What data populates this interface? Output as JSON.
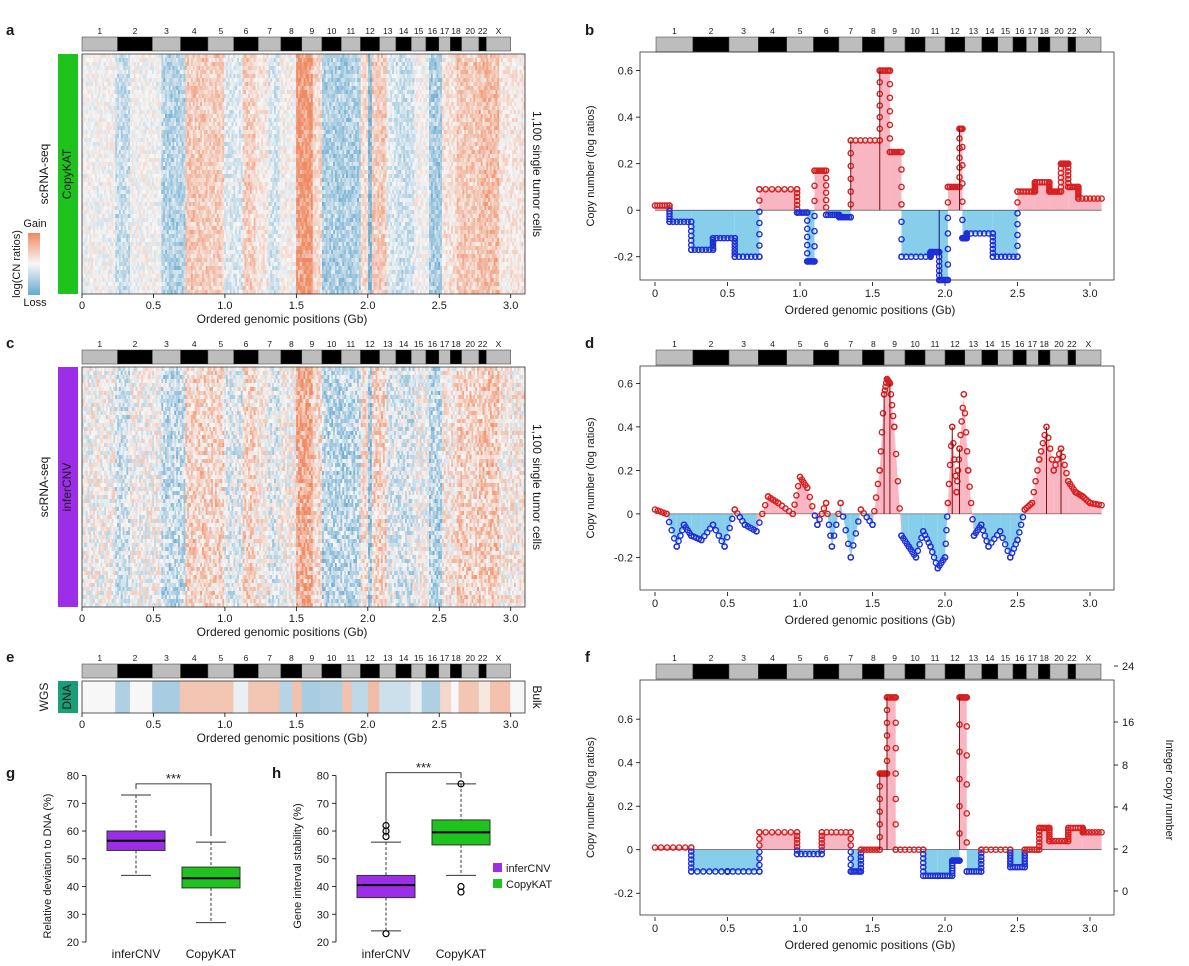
{
  "figure": {
    "chromosome_labels": [
      "1",
      "2",
      "3",
      "4",
      "5",
      "6",
      "7",
      "8",
      "9",
      "10",
      "11",
      "12",
      "13",
      "14",
      "15",
      "16",
      "17",
      "18",
      "20",
      "22",
      "X"
    ],
    "chromosome_ends_gb": [
      0.249,
      0.492,
      0.69,
      0.881,
      1.062,
      1.233,
      1.392,
      1.538,
      1.679,
      1.814,
      1.949,
      2.082,
      2.197,
      2.304,
      2.407,
      2.497,
      2.578,
      2.656,
      2.778,
      2.829,
      3.0
    ]
  },
  "legend_colorbar": {
    "title": "log(CN ratios)",
    "gain_label": "Gain",
    "loss_label": "Loss",
    "gain_color": "#ef8a62",
    "loss_color": "#67a9cf",
    "neutral_color": "#f7f7f7"
  },
  "panels": {
    "a": {
      "letter": "a",
      "row_label": "scRNA-seq",
      "method_label": "CopyKAT",
      "method_color": "#1ec31e",
      "right_label": "1,100 single tumor cells",
      "xlabel": "Ordered genomic positions (Gb)",
      "xticks": [
        "0",
        "0.5",
        "1.0",
        "1.5",
        "2.0",
        "2.5",
        "3.0"
      ]
    },
    "c": {
      "letter": "c",
      "row_label": "scRNA-seq",
      "method_label": "inferCNV",
      "method_color": "#9b2ee6",
      "right_label": "1,100 single tumor cells",
      "xlabel": "Ordered genomic positions (Gb)",
      "xticks": [
        "0",
        "0.5",
        "1.0",
        "1.5",
        "2.0",
        "2.5",
        "3.0"
      ]
    },
    "e": {
      "letter": "e",
      "row_label": "WGS",
      "method_label": "DNA",
      "method_color": "#1a9e77",
      "right_label": "Bulk",
      "xlabel": "Ordered genomic positions (Gb)",
      "xticks": [
        "0",
        "0.5",
        "1.0",
        "1.5",
        "2.0",
        "2.5",
        "3.0"
      ]
    },
    "b": {
      "letter": "b",
      "ylabel": "Copy number (log ratios)",
      "xlabel": "Ordered genomic positions (Gb)",
      "yticks": [
        "-0.2",
        "0",
        "0.2",
        "0.4",
        "0.6"
      ],
      "xticks": [
        "0",
        "0.5",
        "1.0",
        "1.5",
        "2.0",
        "2.5",
        "3.0"
      ]
    },
    "d": {
      "letter": "d",
      "ylabel": "Copy number (log ratios)",
      "xlabel": "Ordered genomic positions (Gb)",
      "yticks": [
        "-0.2",
        "0",
        "0.2",
        "0.4",
        "0.6"
      ],
      "xticks": [
        "0",
        "0.5",
        "1.0",
        "1.5",
        "2.0",
        "2.5",
        "3.0"
      ]
    },
    "f": {
      "letter": "f",
      "ylabel": "Copy number (log ratios)",
      "ylabel_right": "Integer copy number",
      "xlabel": "Ordered genomic positions (Gb)",
      "yticks": [
        "-0.2",
        "0",
        "0.2",
        "0.4",
        "0.6"
      ],
      "yticks_right": [
        "0",
        "2",
        "4",
        "8",
        "16",
        "24"
      ],
      "xticks": [
        "0",
        "0.5",
        "1.0",
        "1.5",
        "2.0",
        "2.5",
        "3.0"
      ]
    },
    "g": {
      "letter": "g",
      "ylabel": "Relative deviation to DNA (%)",
      "yticks": [
        "20",
        "30",
        "40",
        "50",
        "60",
        "70",
        "80"
      ],
      "significance": "***"
    },
    "h": {
      "letter": "h",
      "ylabel": "Gene interval stability (%)",
      "yticks": [
        "20",
        "30",
        "40",
        "50",
        "60",
        "70",
        "80"
      ],
      "significance": "***"
    }
  },
  "legend": {
    "items": [
      {
        "label": "inferCNV",
        "color": "#9b2ee6"
      },
      {
        "label": "CopyKAT",
        "color": "#1ec31e"
      }
    ]
  },
  "chart_data": [
    {
      "type": "heatmap",
      "panel": "a",
      "rows": "1,100 single tumor cells",
      "x_range_gb": [
        0,
        3.1
      ],
      "segments": [
        {
          "start": 0.0,
          "end": 0.23,
          "value": 0.0
        },
        {
          "start": 0.23,
          "end": 0.33,
          "value": -0.35
        },
        {
          "start": 0.33,
          "end": 0.55,
          "value": 0.0
        },
        {
          "start": 0.55,
          "end": 0.72,
          "value": -0.5
        },
        {
          "start": 0.72,
          "end": 0.88,
          "value": 0.45
        },
        {
          "start": 0.88,
          "end": 1.0,
          "value": 0.4
        },
        {
          "start": 1.0,
          "end": 1.13,
          "value": -0.2
        },
        {
          "start": 1.13,
          "end": 1.22,
          "value": 0.4
        },
        {
          "start": 1.22,
          "end": 1.3,
          "value": 0.15
        },
        {
          "start": 1.3,
          "end": 1.38,
          "value": -0.25
        },
        {
          "start": 1.38,
          "end": 1.5,
          "value": 0.05
        },
        {
          "start": 1.5,
          "end": 1.62,
          "value": 0.95
        },
        {
          "start": 1.62,
          "end": 1.68,
          "value": 0.3
        },
        {
          "start": 1.68,
          "end": 1.95,
          "value": -0.55
        },
        {
          "start": 1.95,
          "end": 2.0,
          "value": 0.3
        },
        {
          "start": 2.0,
          "end": 2.03,
          "value": -0.9
        },
        {
          "start": 2.03,
          "end": 2.13,
          "value": 0.45
        },
        {
          "start": 2.13,
          "end": 2.2,
          "value": -0.2
        },
        {
          "start": 2.2,
          "end": 2.33,
          "value": -0.3
        },
        {
          "start": 2.33,
          "end": 2.43,
          "value": 0.0
        },
        {
          "start": 2.43,
          "end": 2.52,
          "value": -0.6
        },
        {
          "start": 2.52,
          "end": 2.62,
          "value": 0.2
        },
        {
          "start": 2.62,
          "end": 2.78,
          "value": 0.45
        },
        {
          "start": 2.78,
          "end": 2.92,
          "value": 0.55
        },
        {
          "start": 2.92,
          "end": 3.1,
          "value": 0.15
        }
      ]
    },
    {
      "type": "line",
      "panel": "b",
      "x": [
        0,
        0.1,
        0.1,
        0.25,
        0.25,
        0.4,
        0.4,
        0.55,
        0.55,
        0.72,
        0.72,
        0.98,
        0.98,
        1.05,
        1.05,
        1.1,
        1.1,
        1.18,
        1.18,
        1.27,
        1.27,
        1.35,
        1.35,
        1.55,
        1.55,
        1.62,
        1.62,
        1.7,
        1.7,
        1.9,
        1.9,
        1.96,
        1.96,
        2.02,
        2.02,
        2.1,
        2.1,
        2.12,
        2.12,
        2.15,
        2.15,
        2.33,
        2.33,
        2.5,
        2.5,
        2.62,
        2.62,
        2.72,
        2.72,
        2.8,
        2.8,
        2.85,
        2.85,
        2.92,
        2.92,
        3.08
      ],
      "values": [
        0.02,
        0.02,
        -0.05,
        -0.05,
        -0.17,
        -0.17,
        -0.12,
        -0.12,
        -0.2,
        -0.2,
        0.09,
        0.09,
        -0.01,
        -0.01,
        -0.22,
        -0.22,
        0.17,
        0.17,
        -0.02,
        -0.02,
        -0.03,
        -0.03,
        0.3,
        0.3,
        0.6,
        0.6,
        0.25,
        0.25,
        -0.2,
        -0.2,
        -0.18,
        -0.18,
        -0.3,
        -0.3,
        0.1,
        0.1,
        0.35,
        0.35,
        -0.12,
        -0.12,
        -0.1,
        -0.1,
        -0.2,
        -0.2,
        0.08,
        0.08,
        0.12,
        0.12,
        0.08,
        0.08,
        0.2,
        0.2,
        0.1,
        0.1,
        0.05,
        0.05
      ],
      "ylim": [
        -0.3,
        0.68
      ]
    },
    {
      "type": "line",
      "panel": "d",
      "x": [
        0,
        0.08,
        0.15,
        0.2,
        0.25,
        0.32,
        0.4,
        0.48,
        0.55,
        0.62,
        0.7,
        0.78,
        0.85,
        0.95,
        1.0,
        1.05,
        1.12,
        1.18,
        1.22,
        1.28,
        1.35,
        1.42,
        1.5,
        1.55,
        1.58,
        1.6,
        1.62,
        1.65,
        1.7,
        1.75,
        1.8,
        1.85,
        1.9,
        1.95,
        2.0,
        2.02,
        2.05,
        2.08,
        2.1,
        2.13,
        2.16,
        2.2,
        2.25,
        2.3,
        2.38,
        2.45,
        2.5,
        2.55,
        2.6,
        2.65,
        2.7,
        2.75,
        2.8,
        2.85,
        2.9,
        2.95,
        3.0,
        3.08
      ],
      "values": [
        0.02,
        0.0,
        -0.15,
        -0.05,
        -0.1,
        -0.12,
        -0.05,
        -0.15,
        0.02,
        -0.05,
        -0.08,
        0.08,
        0.05,
        0.0,
        0.17,
        0.12,
        -0.05,
        0.05,
        -0.15,
        0.05,
        -0.2,
        0.02,
        -0.05,
        0.2,
        0.55,
        0.62,
        0.6,
        0.4,
        -0.1,
        -0.15,
        -0.2,
        -0.08,
        -0.15,
        -0.25,
        -0.2,
        0.05,
        0.4,
        0.1,
        0.3,
        0.55,
        0.2,
        -0.1,
        -0.05,
        -0.15,
        -0.08,
        -0.2,
        -0.12,
        0.02,
        0.05,
        0.25,
        0.4,
        0.2,
        0.3,
        0.15,
        0.1,
        0.08,
        0.05,
        0.04
      ],
      "ylim": [
        -0.35,
        0.68
      ]
    },
    {
      "type": "line",
      "panel": "f",
      "x": [
        0,
        0.25,
        0.25,
        0.5,
        0.5,
        0.72,
        0.72,
        0.98,
        0.98,
        1.15,
        1.15,
        1.35,
        1.35,
        1.42,
        1.42,
        1.55,
        1.55,
        1.6,
        1.6,
        1.66,
        1.66,
        1.85,
        1.85,
        1.95,
        1.95,
        2.05,
        2.05,
        2.1,
        2.1,
        2.15,
        2.15,
        2.25,
        2.25,
        2.45,
        2.45,
        2.55,
        2.55,
        2.65,
        2.65,
        2.72,
        2.72,
        2.85,
        2.85,
        2.95,
        2.95,
        3.08
      ],
      "values": [
        0.01,
        0.01,
        -0.1,
        -0.1,
        -0.1,
        -0.1,
        0.08,
        0.08,
        -0.02,
        -0.02,
        0.08,
        0.08,
        -0.1,
        -0.1,
        0.0,
        0.0,
        0.35,
        0.35,
        0.7,
        0.7,
        0.0,
        0.0,
        -0.12,
        -0.12,
        -0.12,
        -0.12,
        -0.05,
        -0.05,
        0.7,
        0.7,
        -0.1,
        -0.1,
        0.0,
        0.0,
        -0.08,
        -0.08,
        0.0,
        0.0,
        0.1,
        0.1,
        0.04,
        0.04,
        0.1,
        0.1,
        0.08,
        0.08
      ],
      "ylim": [
        -0.3,
        0.78
      ]
    },
    {
      "type": "heatmap",
      "panel": "e",
      "rows": "Bulk",
      "segments": [
        {
          "start": 0.0,
          "end": 0.23,
          "value": 0.0
        },
        {
          "start": 0.23,
          "end": 0.33,
          "value": -0.5
        },
        {
          "start": 0.33,
          "end": 0.49,
          "value": 0.0
        },
        {
          "start": 0.49,
          "end": 0.69,
          "value": -0.55
        },
        {
          "start": 0.69,
          "end": 1.06,
          "value": 0.45
        },
        {
          "start": 1.06,
          "end": 1.16,
          "value": -0.1
        },
        {
          "start": 1.16,
          "end": 1.38,
          "value": 0.45
        },
        {
          "start": 1.38,
          "end": 1.47,
          "value": -0.45
        },
        {
          "start": 1.47,
          "end": 1.54,
          "value": 0.5
        },
        {
          "start": 1.54,
          "end": 1.66,
          "value": -0.55
        },
        {
          "start": 1.66,
          "end": 1.82,
          "value": -0.5
        },
        {
          "start": 1.82,
          "end": 1.89,
          "value": 0.5
        },
        {
          "start": 1.89,
          "end": 2.0,
          "value": -0.4
        },
        {
          "start": 2.0,
          "end": 2.08,
          "value": 0.55
        },
        {
          "start": 2.08,
          "end": 2.3,
          "value": -0.3
        },
        {
          "start": 2.3,
          "end": 2.38,
          "value": -0.1
        },
        {
          "start": 2.38,
          "end": 2.5,
          "value": -0.5
        },
        {
          "start": 2.5,
          "end": 2.58,
          "value": 0.3
        },
        {
          "start": 2.58,
          "end": 2.64,
          "value": 0.0
        },
        {
          "start": 2.64,
          "end": 2.78,
          "value": 0.45
        },
        {
          "start": 2.78,
          "end": 2.86,
          "value": 0.15
        },
        {
          "start": 2.86,
          "end": 3.0,
          "value": 0.5
        }
      ]
    },
    {
      "type": "box",
      "panel": "g",
      "categories": [
        "inferCNV",
        "CopyKAT"
      ],
      "ylim": [
        20,
        82
      ],
      "boxes": [
        {
          "min": 44,
          "q1": 53,
          "median": 56.5,
          "q3": 60,
          "max": 73,
          "outliers": []
        },
        {
          "min": 27,
          "q1": 39.5,
          "median": 43,
          "q3": 47,
          "max": 56,
          "outliers": []
        }
      ]
    },
    {
      "type": "box",
      "panel": "h",
      "categories": [
        "inferCNV",
        "CopyKAT"
      ],
      "ylim": [
        20,
        82
      ],
      "boxes": [
        {
          "min": 24,
          "q1": 36,
          "median": 40.5,
          "q3": 44,
          "max": 56,
          "outliers": [
            23,
            58,
            60,
            62
          ]
        },
        {
          "min": 44,
          "q1": 55,
          "median": 59.5,
          "q3": 64,
          "max": 77,
          "outliers": [
            38,
            40,
            77
          ]
        }
      ]
    }
  ]
}
